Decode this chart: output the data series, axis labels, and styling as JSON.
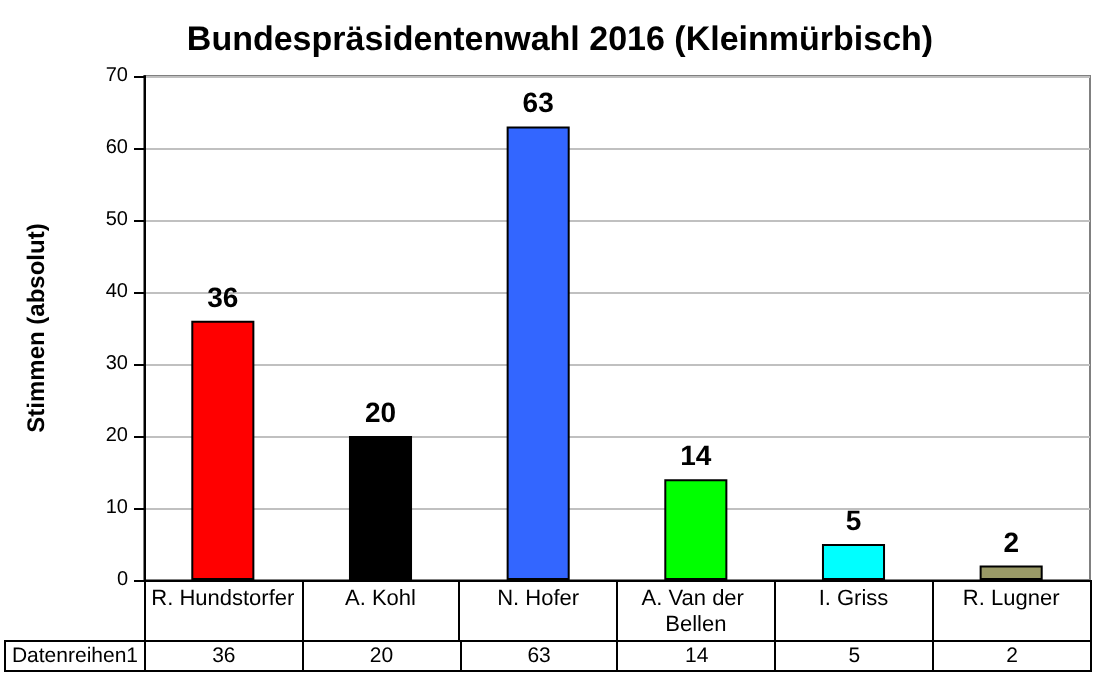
{
  "chart_data": {
    "type": "bar",
    "title": "Bundespräsidentenwahl 2016 (Kleinmürbisch)",
    "ylabel": "Stimmen (absolut)",
    "categories": [
      "R. Hundstorfer",
      "A. Kohl",
      "N. Hofer",
      "A. Van der Bellen",
      "I. Griss",
      "R. Lugner"
    ],
    "series": [
      {
        "name": "Datenreihen1",
        "values": [
          36,
          20,
          63,
          14,
          5,
          2
        ],
        "value_labels": [
          "36",
          "20",
          "63",
          "14",
          "5",
          "2"
        ],
        "colors": [
          "#ff0000",
          "#000000",
          "#3366ff",
          "#00ff00",
          "#00ffff",
          "#999966"
        ]
      }
    ],
    "ylim": [
      0,
      70
    ],
    "yticks": [
      0,
      10,
      20,
      30,
      40,
      50,
      60,
      70
    ],
    "grid": "y",
    "data_labels": true
  }
}
